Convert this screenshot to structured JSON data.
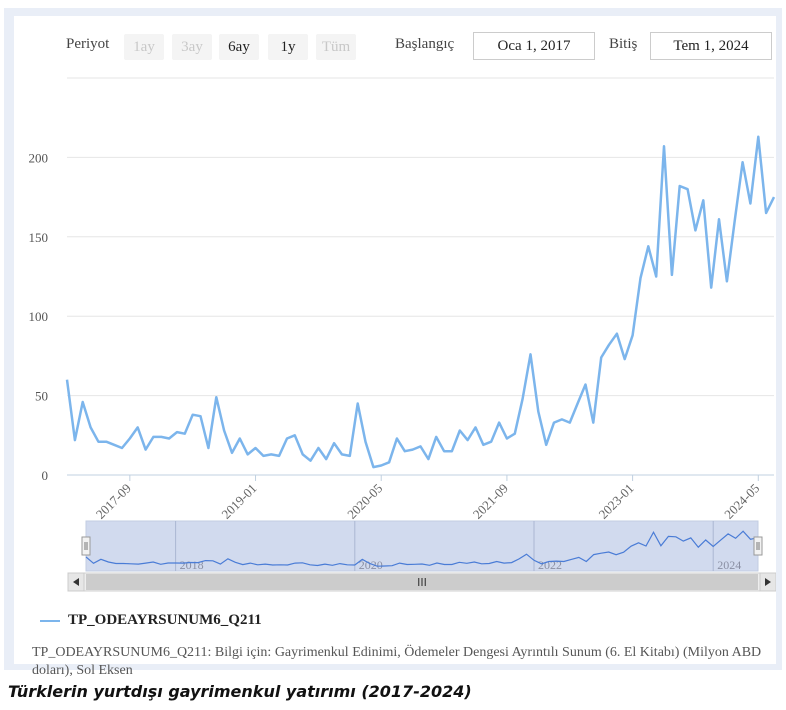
{
  "toolbar": {
    "period_label": "Periyot",
    "periods": [
      {
        "label": "1ay",
        "active": false
      },
      {
        "label": "3ay",
        "active": false
      },
      {
        "label": "6ay",
        "active": true
      },
      {
        "label": "1y",
        "active": true
      },
      {
        "label": "Tüm",
        "active": false
      }
    ],
    "start_label": "Başlangıç",
    "start_value": "Oca 1, 2017",
    "end_label": "Bitiş",
    "end_value": "Tem 1, 2024"
  },
  "navigator": {
    "year_labels": [
      "2018",
      "2020",
      "2022",
      "2024"
    ],
    "scroll_grip": "III"
  },
  "legend": {
    "series_name": "TP_ODEAYRSUNUM6_Q211"
  },
  "note": "TP_ODEAYRSUNUM6_Q211: Bilgi için: Gayrimenkul Edinimi, Ödemeler Dengesi Ayrıntılı Sunum (6. El Kitabı) (Milyon ABD doları), Sol Eksen",
  "caption": "Türklerin yurtdışı gayrimenkul yatırımı (2017-2024)",
  "colors": {
    "line": "#7cb5ec",
    "navigator_mask": "#c9d4ec"
  },
  "chart_data": {
    "type": "line",
    "series": [
      {
        "name": "TP_ODEAYRSUNUM6_Q211"
      }
    ],
    "x_start": "2017-01",
    "x_end": "2024-07",
    "ylim": [
      0,
      250
    ],
    "yticks": [
      0,
      50,
      100,
      150,
      200
    ],
    "xticks": [
      "2017-09",
      "2019-01",
      "2020-05",
      "2021-09",
      "2023-01",
      "2024-05"
    ],
    "grid": true,
    "values": [
      60,
      22,
      46,
      30,
      21,
      21,
      19,
      17,
      23,
      30,
      16,
      24,
      24,
      23,
      27,
      26,
      38,
      37,
      17,
      49,
      28,
      14,
      23,
      13,
      17,
      12,
      13,
      12,
      23,
      25,
      13,
      9,
      17,
      10,
      20,
      13,
      12,
      45,
      21,
      5,
      6,
      8,
      23,
      15,
      16,
      18,
      10,
      24,
      15,
      15,
      28,
      22,
      30,
      19,
      21,
      33,
      23,
      26,
      48,
      76,
      40,
      19,
      33,
      35,
      33,
      45,
      57,
      33,
      74,
      82,
      89,
      73,
      88,
      124,
      144,
      125,
      207,
      126,
      182,
      180,
      154,
      173,
      118,
      161,
      122,
      160,
      197,
      171,
      213,
      165,
      175
    ]
  }
}
